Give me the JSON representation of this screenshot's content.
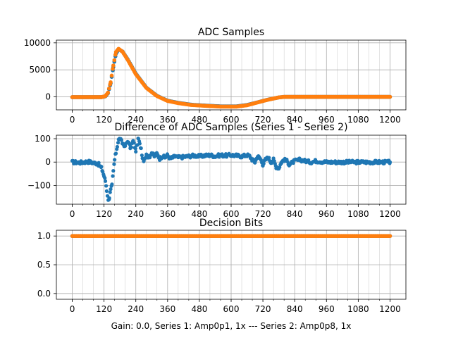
{
  "figure": {
    "footer": "Gain: 0.0, Series 1: Amp0p1, 1x --- Series 2: Amp0p8, 1x"
  },
  "colors": {
    "series1": "#1f77b4",
    "series2": "#ff7f0e",
    "grid": "#b0b0b0"
  },
  "chart_data": [
    {
      "type": "scatter",
      "title": "ADC Samples",
      "xlabel": "",
      "ylabel": "",
      "xlim": [
        -60,
        1260
      ],
      "ylim": [
        -2400,
        10500
      ],
      "xticks": [
        0,
        120,
        240,
        360,
        480,
        600,
        720,
        840,
        960,
        1080,
        1200
      ],
      "xtick_labels": [
        "0",
        "120",
        "240",
        "360",
        "480",
        "600",
        "720",
        "840",
        "960",
        "1080",
        "1200"
      ],
      "yticks": [
        0,
        5000,
        10000
      ],
      "ytick_labels": [
        "0",
        "5000",
        "10000"
      ],
      "grid": true,
      "series": [
        {
          "name": "Series 1",
          "x": [
            0,
            60,
            110,
            125,
            135,
            145,
            155,
            165,
            175,
            190,
            210,
            240,
            280,
            320,
            360,
            400,
            450,
            500,
            560,
            620,
            660,
            700,
            740,
            780,
            800,
            840,
            900,
            960,
            1020,
            1080,
            1140,
            1200
          ],
          "y": [
            -50,
            -50,
            -50,
            100,
            700,
            2500,
            5500,
            8000,
            8800,
            8400,
            6900,
            4300,
            1700,
            200,
            -700,
            -1100,
            -1450,
            -1600,
            -1750,
            -1750,
            -1500,
            -1000,
            -500,
            -100,
            0,
            0,
            0,
            0,
            0,
            0,
            0,
            0
          ]
        },
        {
          "name": "Series 2",
          "x": [
            0,
            60,
            110,
            125,
            135,
            145,
            155,
            165,
            175,
            190,
            210,
            240,
            280,
            320,
            360,
            400,
            450,
            500,
            560,
            620,
            660,
            700,
            740,
            780,
            800,
            840,
            900,
            960,
            1020,
            1080,
            1140,
            1200
          ],
          "y": [
            -50,
            -50,
            -50,
            150,
            800,
            2700,
            5800,
            8300,
            8900,
            8350,
            6800,
            4200,
            1650,
            150,
            -750,
            -1150,
            -1500,
            -1650,
            -1800,
            -1800,
            -1550,
            -1020,
            -510,
            -100,
            0,
            0,
            0,
            0,
            0,
            0,
            0,
            0
          ]
        }
      ]
    },
    {
      "type": "scatter",
      "title": "Difference of ADC Samples (Series 1 - Series 2)",
      "xlabel": "",
      "ylabel": "",
      "xlim": [
        -60,
        1260
      ],
      "ylim": [
        -180,
        115
      ],
      "xticks": [
        0,
        120,
        240,
        360,
        480,
        600,
        720,
        840,
        960,
        1080,
        1200
      ],
      "xtick_labels": [
        "0",
        "120",
        "240",
        "360",
        "480",
        "600",
        "720",
        "840",
        "960",
        "1080",
        "1200"
      ],
      "yticks": [
        -100,
        0,
        100
      ],
      "ytick_labels": [
        "−100",
        "0",
        "100"
      ],
      "grid": true,
      "series": [
        {
          "name": "Series 1 - Series 2",
          "x": [
            0,
            30,
            60,
            90,
            100,
            110,
            115,
            120,
            125,
            128,
            130,
            133,
            136,
            140,
            145,
            150,
            155,
            160,
            165,
            170,
            175,
            180,
            190,
            200,
            210,
            220,
            230,
            240,
            250,
            255,
            260,
            265,
            270,
            280,
            290,
            300,
            310,
            320,
            330,
            340,
            350,
            360,
            370,
            380,
            390,
            400,
            420,
            440,
            460,
            480,
            500,
            520,
            540,
            560,
            580,
            600,
            620,
            640,
            660,
            670,
            680,
            690,
            700,
            710,
            720,
            730,
            740,
            750,
            760,
            770,
            780,
            790,
            800,
            810,
            820,
            840,
            860,
            880,
            900,
            920,
            960,
            1000,
            1040,
            1080,
            1120,
            1160,
            1200
          ],
          "y": [
            0,
            -2,
            2,
            -5,
            -10,
            -25,
            -40,
            -60,
            -80,
            -100,
            -120,
            -140,
            -165,
            -150,
            -120,
            -100,
            -40,
            10,
            40,
            70,
            95,
            100,
            80,
            70,
            90,
            60,
            90,
            50,
            100,
            75,
            60,
            20,
            10,
            30,
            20,
            40,
            25,
            35,
            15,
            25,
            20,
            30,
            15,
            20,
            25,
            20,
            22,
            25,
            28,
            25,
            28,
            30,
            25,
            30,
            28,
            30,
            28,
            25,
            30,
            25,
            10,
            0,
            25,
            15,
            -10,
            10,
            20,
            0,
            10,
            -20,
            -25,
            0,
            10,
            5,
            -10,
            5,
            10,
            5,
            0,
            5,
            0,
            0,
            0,
            0,
            0,
            0,
            0
          ]
        }
      ]
    },
    {
      "type": "scatter",
      "title": "Decision Bits",
      "xlabel": "Gain: 0.0, Series 1: Amp0p1, 1x --- Series 2: Amp0p8, 1x",
      "ylabel": "",
      "xlim": [
        -60,
        1260
      ],
      "ylim": [
        -0.1,
        1.1
      ],
      "xticks": [
        0,
        120,
        240,
        360,
        480,
        600,
        720,
        840,
        960,
        1080,
        1200
      ],
      "xtick_labels": [
        "0",
        "120",
        "240",
        "360",
        "480",
        "600",
        "720",
        "840",
        "960",
        "1080",
        "1200"
      ],
      "yticks": [
        0.0,
        0.5,
        1.0
      ],
      "ytick_labels": [
        "0.0",
        "0.5",
        "1.0"
      ],
      "grid": true,
      "series": [
        {
          "name": "Series 1",
          "x": [
            0,
            1200
          ],
          "y": [
            1,
            1
          ]
        },
        {
          "name": "Series 2",
          "x": [
            0,
            1200
          ],
          "y": [
            1,
            1
          ]
        }
      ]
    }
  ]
}
